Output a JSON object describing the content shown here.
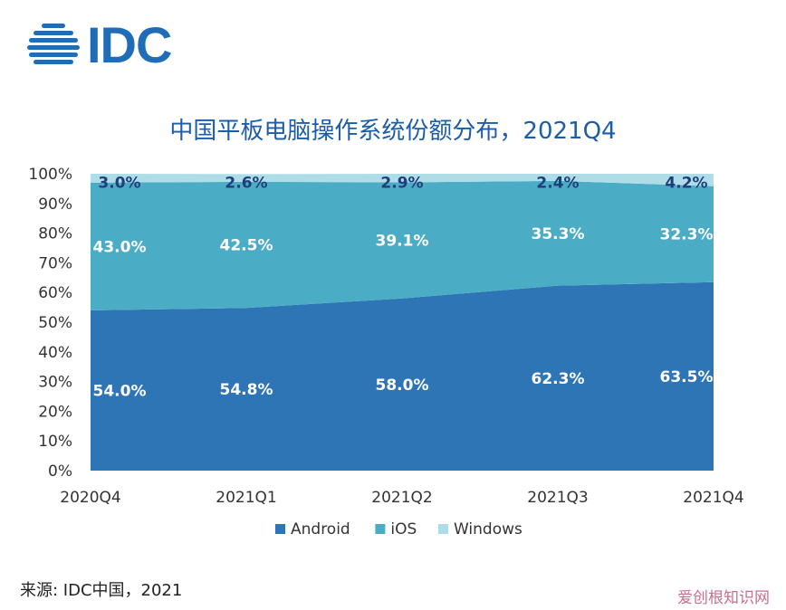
{
  "header": {
    "logo_text": "IDC",
    "title": "中国平板电脑操作系统份额分布，2021Q4"
  },
  "footer": {
    "source": "来源: IDC中国，2021",
    "watermark": "爱创根知识网"
  },
  "colors": {
    "android": "#2e75b6",
    "ios": "#4bacc6",
    "windows": "#aedde8",
    "title": "#1d5da8",
    "label_dark": "#1f3f7a"
  },
  "chart_data": {
    "type": "area",
    "stacked": true,
    "title": "中国平板电脑操作系统份额分布，2021Q4",
    "categories": [
      "2020Q4",
      "2021Q1",
      "2021Q2",
      "2021Q3",
      "2021Q4"
    ],
    "series": [
      {
        "name": "Android",
        "values": [
          54.0,
          54.8,
          58.0,
          62.3,
          63.5
        ],
        "labels": [
          "54.0%",
          "54.8%",
          "58.0%",
          "62.3%",
          "63.5%"
        ]
      },
      {
        "name": "iOS",
        "values": [
          43.0,
          42.5,
          39.1,
          35.3,
          32.3
        ],
        "labels": [
          "43.0%",
          "42.5%",
          "39.1%",
          "35.3%",
          "32.3%"
        ]
      },
      {
        "name": "Windows",
        "values": [
          3.0,
          2.6,
          2.9,
          2.4,
          4.2
        ],
        "labels": [
          "3.0%",
          "2.6%",
          "2.9%",
          "2.4%",
          "4.2%"
        ]
      }
    ],
    "y_ticks": [
      "0%",
      "10%",
      "20%",
      "30%",
      "40%",
      "50%",
      "60%",
      "70%",
      "80%",
      "90%",
      "100%"
    ],
    "ylim": [
      0,
      100
    ],
    "grid": false,
    "legend_position": "bottom"
  }
}
